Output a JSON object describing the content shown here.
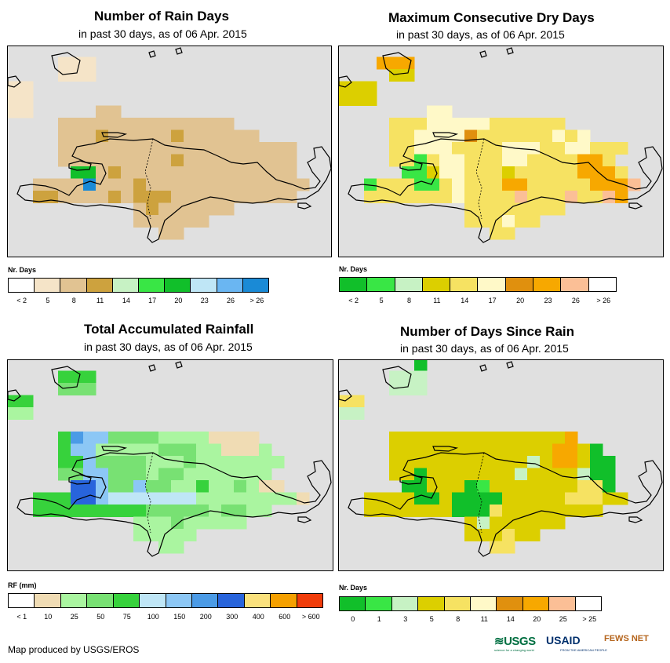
{
  "panels": [
    {
      "title": "Number of Rain Days",
      "subtitle": "in past 30 days, as of 06 Apr. 2015",
      "legend_title": "Nr. Days",
      "legend_colors": [
        "#ffffff",
        "#f5e4c8",
        "#e1c392",
        "#cda23e",
        "#c7f2c4",
        "#39e645",
        "#11bf2a",
        "#bfe6f6",
        "#6ab6f2",
        "#1a8ad6"
      ],
      "legend_labels": [
        "< 2",
        "5",
        "8",
        "11",
        "14",
        "17",
        "20",
        "23",
        "26",
        "> 26"
      ],
      "palette": [
        "#ffffff",
        "#f5e4c8",
        "#e1c392",
        "#cda23e",
        "#c7f2c4",
        "#39e645",
        "#11bf2a",
        "#bfe6f6",
        "#6ab6f2",
        "#1a8ad6"
      ],
      "grid": [
        "..........................",
        "....AAA...................",
        "....AAA...................",
        "AA........................",
        "AA........................",
        "AA.....BB.................",
        "....BBBBBBBBBBBBBB........",
        "....BBBCBBBBBCBBBBBB......",
        "....BBBBBBBBBBBBBBBBBBB...",
        "....BBBBBBBBBCBBBBBBBBB...",
        ".....FFBCBBBBBBBBBBBBBB...",
        "..BBBB9BBBCBBBBBBBBBBBBB..",
        "..CCBBBBCBCCCBBBBBBBBBB...",
        "..........BCBBBBBB........",
        "..........BBBBBB..........",
        "............BB............",
        "..........................",
        ".........................."
      ]
    },
    {
      "title": "Maximum Consecutive Dry Days",
      "subtitle": "in past 30 days, as of 06 Apr. 2015",
      "legend_title": "Nr. Days",
      "legend_colors": [
        "#11bf2a",
        "#39e645",
        "#c7f2c4",
        "#dccf00",
        "#f6e262",
        "#fff9c8",
        "#e0900e",
        "#f7a800",
        "#fbbf96",
        "#ffffff"
      ],
      "legend_labels": [
        "< 2",
        "5",
        "8",
        "11",
        "14",
        "17",
        "20",
        "23",
        "26",
        "> 26"
      ],
      "palette": [
        "#ffffff",
        "#11bf2a",
        "#39e645",
        "#c7f2c4",
        "#dccf00",
        "#f6e262",
        "#fff9c8",
        "#e0900e",
        "#f7a800",
        "#fbbf96"
      ],
      "grid": [
        "..........................",
        "...HHH....................",
        "....DD....................",
        "DDD.......................",
        "DDD.......................",
        ".......FF.................",
        "....EEEFFFFFEEEEEE........",
        "....EEFFFFGEEEEEEFEF......",
        "....EEFFFEEEEFFFEEFFEEE...",
        "....EE2EFFEEEFFEEEE8HE....",
        ".....22DFFEEEDEEEEE88HE...",
        "..2EEE22EFEEEHHEEEEE8HH9..",
        "..EEEEEEEFEEEE9EEE9EE9H...",
        "..........EEEEEEEE........",
        "..........EEEFEE..........",
        "............EE............",
        "..........................",
        ".........................."
      ]
    },
    {
      "title": "Total Accumulated Rainfall",
      "subtitle": "in past 30 days, as of 06 Apr. 2015",
      "legend_title": "RF (mm)",
      "legend_colors": [
        "#ffffff",
        "#f0dcb4",
        "#aaf5a0",
        "#78e173",
        "#37d23c",
        "#bfe6f6",
        "#8cc7f5",
        "#4b9be6",
        "#2864dc",
        "#fae17d",
        "#f5a000",
        "#f03c0a"
      ],
      "legend_labels": [
        "< 1",
        "10",
        "25",
        "50",
        "75",
        "100",
        "150",
        "200",
        "300",
        "400",
        "600",
        "> 600"
      ],
      "palette": [
        "#ffffff",
        "#f0dcb4",
        "#aaf5a0",
        "#78e173",
        "#37d23c",
        "#bfe6f6",
        "#8cc7f5",
        "#4b9be6",
        "#2864dc"
      ],
      "grid": [
        "..........................",
        "....444...................",
        "....333...................",
        "44........................",
        "22........................",
        "..........................",
        "....4GFF333322221111......",
        "....4FF22222333221112.....",
        "....44F333322232222222....",
        "....CCFF3332332222222.....",
        ".....H8F33F33224223211....",
        "..444HH65555555222222221..",
        "..4444444443333323322.....",
        "..........222322222.......",
        "..........22222...........",
        "............22............",
        "..........................",
        ".........................."
      ]
    },
    {
      "title": "Number of Days Since Rain",
      "subtitle": "in past 30 days, as of 06 Apr. 2015",
      "legend_title": "Nr. Days",
      "legend_colors": [
        "#11bf2a",
        "#39e645",
        "#c7f2c4",
        "#dccf00",
        "#f6e262",
        "#fff9c8",
        "#e0900e",
        "#f7a800",
        "#fbbf96",
        "#ffffff"
      ],
      "legend_labels": [
        "0",
        "1",
        "3",
        "5",
        "8",
        "11",
        "14",
        "20",
        "25",
        "> 25"
      ],
      "palette": [
        "#ffffff",
        "#11bf2a",
        "#39e645",
        "#c7f2c4",
        "#dccf00",
        "#f6e262",
        "#fff9c8",
        "#e0900e",
        "#f7a800",
        "#fbbf96"
      ],
      "grid": [
        "......1...................",
        "....CCC...................",
        "....CCC...................",
        "EE........................",
        "CC........................",
        "..........................",
        "....DDDDDDDDDDDDDDH.......",
        "....DDDDDDDDDDDDDHHD1.....",
        "....DDDDDDDDDDDCDHHD11....",
        "....DD1DDDDDDDCDDDDC11....",
        ".....11DDD12DDDDDDDEE1....",
        "..DDDD11D1111DDDDDEEEDD...",
        "..DDDDDDD111EDDDDDDDD.....",
        "..........DCDDDDDD........",
        "..........DDDEDD..........",
        "............EE............",
        "..........................",
        ".........................."
      ]
    }
  ],
  "footer": "Map produced by USGS/EROS",
  "logos": {
    "usgs": "≋USGS",
    "usgs_tagline": "science for a changing world",
    "usaid": "USAID",
    "usaid_tagline": "FROM THE AMERICAN PEOPLE",
    "fews": "FEWS NET"
  }
}
